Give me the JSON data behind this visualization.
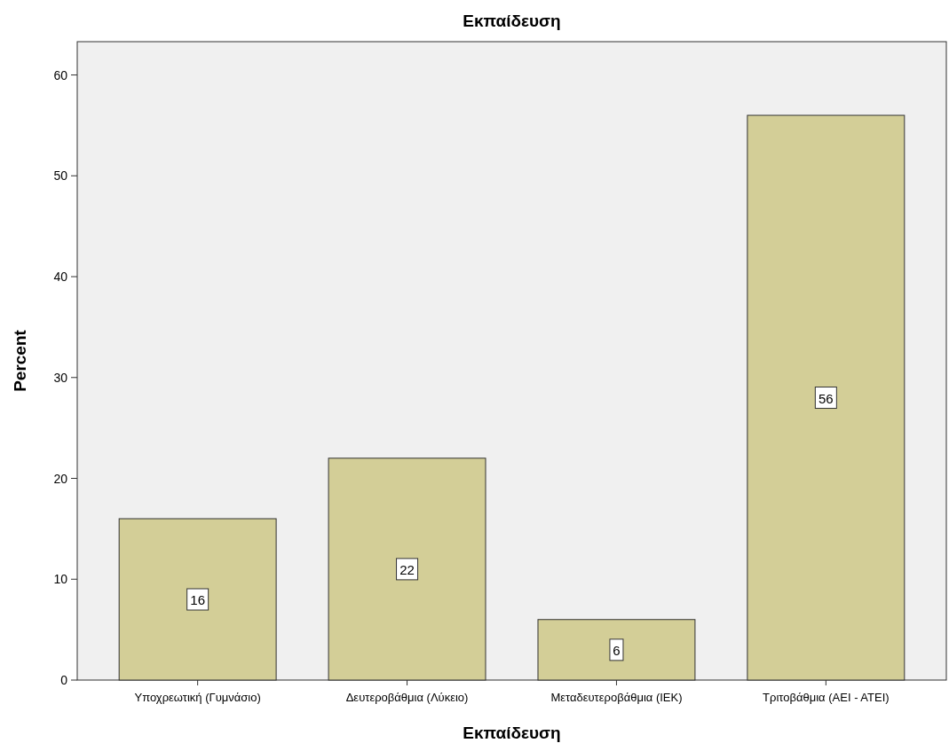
{
  "chart_data": {
    "type": "bar",
    "title": "Εκπαίδευση",
    "xlabel": "Εκπαίδευση",
    "ylabel": "Percent",
    "categories": [
      "Υποχρεωτική (Γυμνάσιο)",
      "Δευτεροβάθμια (Λύκειο)",
      "Μεταδευτεροβάθμια (ΙΕΚ)",
      "Τριτοβάθμια (ΑΕΙ - ΑΤΕΙ)"
    ],
    "values": [
      16,
      22,
      6,
      56
    ],
    "color": "#d3ce97",
    "ylim": [
      0,
      63.3
    ],
    "yticks": [
      0,
      10,
      20,
      30,
      40,
      50,
      60
    ],
    "data_labels": true,
    "grid": false
  }
}
